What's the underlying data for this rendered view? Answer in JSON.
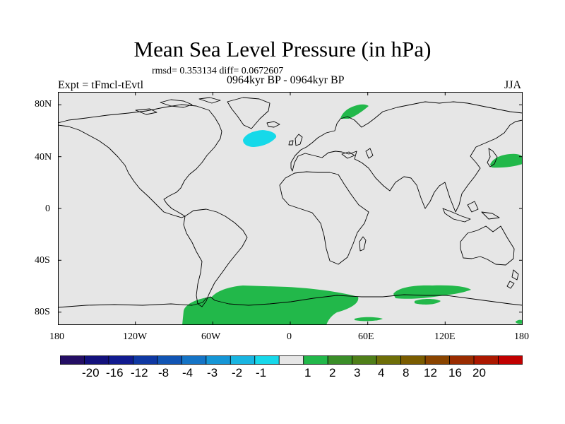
{
  "title": "Mean Sea Level Pressure (in hPa)",
  "stats": "rmsd= 0.353134 diff= 0.0672607",
  "experiment": "Expt = tFmcl-tEvtl",
  "period": "0964kyr BP - 0964kyr BP",
  "season": "JJA",
  "lat_ticks": [
    "80N",
    "40N",
    "0",
    "40S",
    "80S"
  ],
  "lon_ticks": [
    "180",
    "120W",
    "60W",
    "0",
    "60E",
    "120E",
    "180"
  ],
  "colors": {
    "background": "#e6e6e6",
    "coast": "#000000",
    "positive": "#22b84a",
    "negative": "#16d9e9"
  },
  "colorbar": {
    "colors": [
      "#240e64",
      "#13117c",
      "#111b90",
      "#0f38a3",
      "#1155b4",
      "#1574c6",
      "#1596d6",
      "#19b5e1",
      "#17d8ea",
      "#e6e6e6",
      "#22b84a",
      "#3a8e28",
      "#4f7f19",
      "#6e6e08",
      "#7a5c00",
      "#8a4400",
      "#9a2c00",
      "#ac1800",
      "#c10000"
    ],
    "labels": [
      "-20",
      "-16",
      "-12",
      "-8",
      "-4",
      "-3",
      "-2",
      "-1",
      "1",
      "2",
      "3",
      "4",
      "8",
      "12",
      "16",
      "20"
    ]
  }
}
